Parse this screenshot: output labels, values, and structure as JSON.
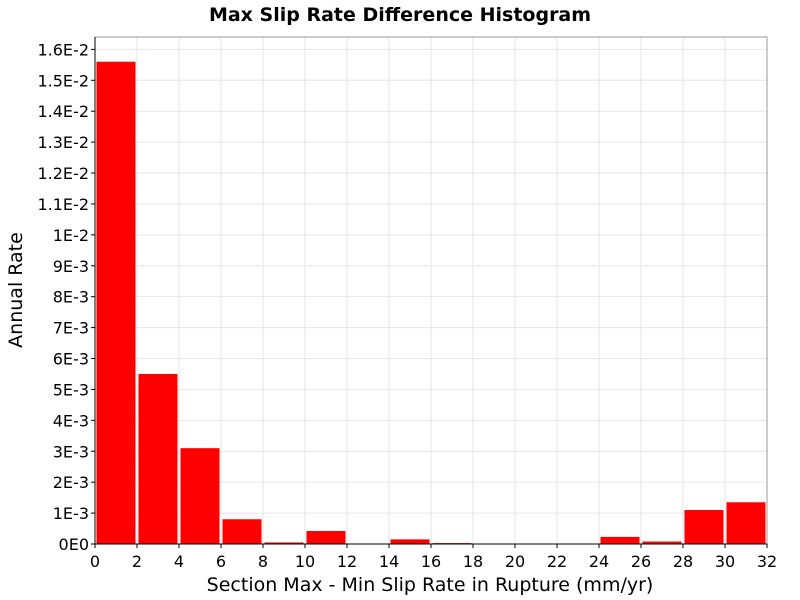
{
  "chart_data": {
    "type": "bar",
    "title": "Max Slip Rate Difference Histogram",
    "xlabel": "Section Max - Min Slip Rate in Rupture (mm/yr)",
    "ylabel": "Annual Rate",
    "xlim": [
      0,
      32
    ],
    "ylim": [
      0,
      0.0164
    ],
    "x_ticks": [
      0,
      2,
      4,
      6,
      8,
      10,
      12,
      14,
      16,
      18,
      20,
      22,
      24,
      26,
      28,
      30,
      32
    ],
    "x_tick_labels": [
      "0",
      "2",
      "4",
      "6",
      "8",
      "10",
      "12",
      "14",
      "16",
      "18",
      "20",
      "22",
      "24",
      "26",
      "28",
      "30",
      "32"
    ],
    "y_ticks": [
      0,
      0.001,
      0.002,
      0.003,
      0.004,
      0.005,
      0.006,
      0.007,
      0.008,
      0.009,
      0.01,
      0.011,
      0.012,
      0.013,
      0.014,
      0.015,
      0.016
    ],
    "y_tick_labels": [
      "0E0",
      "1E-3",
      "2E-3",
      "3E-3",
      "4E-3",
      "5E-3",
      "6E-3",
      "7E-3",
      "8E-3",
      "9E-3",
      "1E-2",
      "1.1E-2",
      "1.2E-2",
      "1.3E-2",
      "1.4E-2",
      "1.5E-2",
      "1.6E-2"
    ],
    "grid": true,
    "bar_color": "#ff0000",
    "bin_width": 2,
    "bins": [
      1,
      3,
      5,
      7,
      9,
      11,
      13,
      15,
      17,
      19,
      21,
      23,
      25,
      27,
      29,
      31
    ],
    "values": [
      0.0156,
      0.0055,
      0.0031,
      0.0008,
      5e-05,
      0.00042,
      0.0,
      0.00015,
      3e-05,
      0.0,
      0.0,
      0.0,
      0.00023,
      8e-05,
      0.0011,
      0.00135
    ]
  }
}
